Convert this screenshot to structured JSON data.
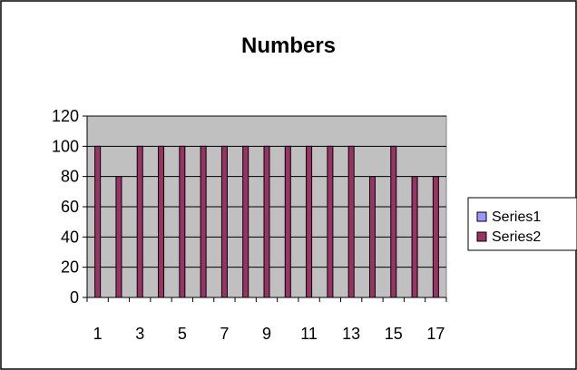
{
  "chart_data": {
    "type": "bar",
    "title": "Numbers",
    "xlabel": "",
    "ylabel": "",
    "ylim": [
      0,
      120
    ],
    "y_ticks": [
      0,
      20,
      40,
      60,
      80,
      100,
      120
    ],
    "categories": [
      1,
      2,
      3,
      4,
      5,
      6,
      7,
      8,
      9,
      10,
      11,
      12,
      13,
      14,
      15,
      16,
      17
    ],
    "x_tick_labels": [
      "1",
      "3",
      "5",
      "7",
      "9",
      "11",
      "13",
      "15",
      "17"
    ],
    "series": [
      {
        "name": "Series1",
        "color": "#9999ff",
        "values": [
          0,
          0,
          0,
          0,
          0,
          0,
          0,
          0,
          0,
          0,
          0,
          0,
          0,
          0,
          0,
          0,
          0
        ]
      },
      {
        "name": "Series2",
        "color": "#993366",
        "values": [
          100,
          80,
          100,
          100,
          100,
          100,
          100,
          100,
          100,
          100,
          100,
          100,
          100,
          80,
          100,
          80,
          80
        ]
      }
    ],
    "grid": true,
    "plot_background": "#c0c0c0",
    "legend_position": "right"
  }
}
